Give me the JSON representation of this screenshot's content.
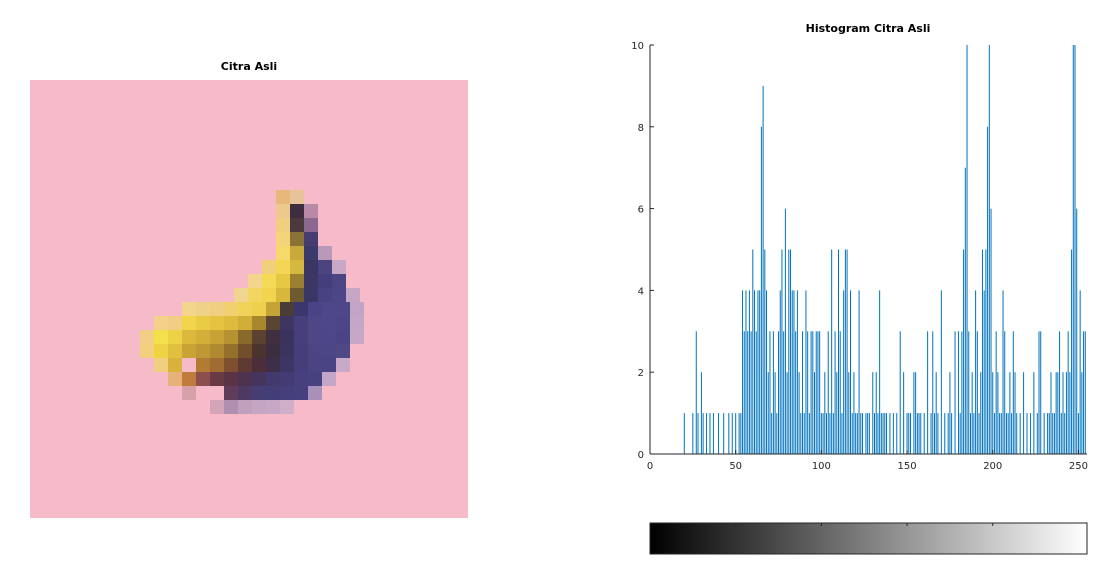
{
  "left_panel": {
    "title": "Citra Asli",
    "background_color": "#f7bac8"
  },
  "chart_data": {
    "type": "bar",
    "title": "Histogram Citra Asli",
    "xlabel": "",
    "ylabel": "",
    "xlim": [
      0,
      255
    ],
    "ylim": [
      0,
      10
    ],
    "x_ticks": [
      0,
      50,
      100,
      150,
      200,
      250
    ],
    "y_ticks": [
      0,
      2,
      4,
      6,
      8,
      10
    ],
    "bar_color": "#0072bd",
    "grid": false,
    "x": [
      20,
      25,
      27,
      28,
      30,
      31,
      33,
      35,
      37,
      40,
      43,
      46,
      48,
      50,
      52,
      53,
      54,
      55,
      56,
      57,
      58,
      59,
      60,
      61,
      62,
      63,
      64,
      65,
      66,
      67,
      68,
      69,
      70,
      71,
      72,
      73,
      74,
      75,
      76,
      77,
      78,
      79,
      80,
      81,
      82,
      83,
      84,
      85,
      86,
      87,
      88,
      89,
      90,
      91,
      92,
      93,
      94,
      95,
      96,
      97,
      98,
      99,
      100,
      101,
      102,
      103,
      104,
      105,
      106,
      107,
      108,
      109,
      110,
      111,
      112,
      113,
      114,
      115,
      116,
      117,
      118,
      119,
      120,
      121,
      122,
      123,
      124,
      126,
      127,
      128,
      130,
      131,
      132,
      133,
      134,
      135,
      136,
      137,
      138,
      140,
      142,
      144,
      146,
      148,
      150,
      151,
      152,
      154,
      155,
      156,
      157,
      158,
      160,
      162,
      164,
      165,
      166,
      167,
      168,
      170,
      172,
      174,
      175,
      176,
      178,
      180,
      181,
      182,
      183,
      184,
      185,
      186,
      187,
      188,
      189,
      190,
      191,
      192,
      193,
      194,
      195,
      196,
      197,
      198,
      199,
      200,
      201,
      202,
      203,
      204,
      205,
      206,
      207,
      208,
      209,
      210,
      211,
      212,
      213,
      214,
      216,
      218,
      220,
      222,
      224,
      226,
      227,
      228,
      230,
      232,
      233,
      234,
      235,
      236,
      237,
      238,
      239,
      240,
      241,
      242,
      243,
      244,
      245,
      246,
      247,
      248,
      249,
      250,
      251,
      252,
      253,
      254
    ],
    "values": [
      1,
      1,
      3,
      1,
      2,
      1,
      1,
      1,
      1,
      1,
      1,
      1,
      1,
      1,
      1,
      1,
      4,
      3,
      4,
      3,
      4,
      3,
      5,
      4,
      3,
      4,
      4,
      8,
      9,
      5,
      4,
      2,
      3,
      1,
      3,
      2,
      1,
      3,
      4,
      5,
      3,
      6,
      2,
      5,
      5,
      4,
      4,
      3,
      4,
      2,
      1,
      3,
      1,
      4,
      3,
      1,
      3,
      3,
      2,
      3,
      3,
      3,
      1,
      1,
      2,
      1,
      3,
      1,
      5,
      1,
      3,
      2,
      5,
      3,
      1,
      4,
      5,
      5,
      2,
      4,
      1,
      2,
      1,
      1,
      4,
      1,
      1,
      1,
      1,
      1,
      2,
      1,
      2,
      1,
      4,
      1,
      1,
      1,
      1,
      1,
      1,
      1,
      3,
      2,
      1,
      1,
      1,
      2,
      2,
      1,
      1,
      1,
      1,
      3,
      1,
      3,
      1,
      2,
      1,
      4,
      1,
      1,
      2,
      1,
      3,
      3,
      1,
      3,
      5,
      7,
      10,
      3,
      1,
      2,
      1,
      4,
      3,
      1,
      2,
      5,
      4,
      5,
      8,
      10,
      6,
      2,
      1,
      3,
      2,
      1,
      1,
      4,
      3,
      1,
      1,
      2,
      1,
      3,
      2,
      1,
      1,
      2,
      1,
      1,
      2,
      1,
      3,
      3,
      1,
      1,
      1,
      2,
      1,
      1,
      2,
      2,
      3,
      1,
      2,
      1,
      2,
      3,
      2,
      5,
      10,
      10,
      6,
      1,
      4,
      2,
      3,
      3
    ]
  },
  "colorbar": {
    "range": [
      0,
      255
    ]
  }
}
